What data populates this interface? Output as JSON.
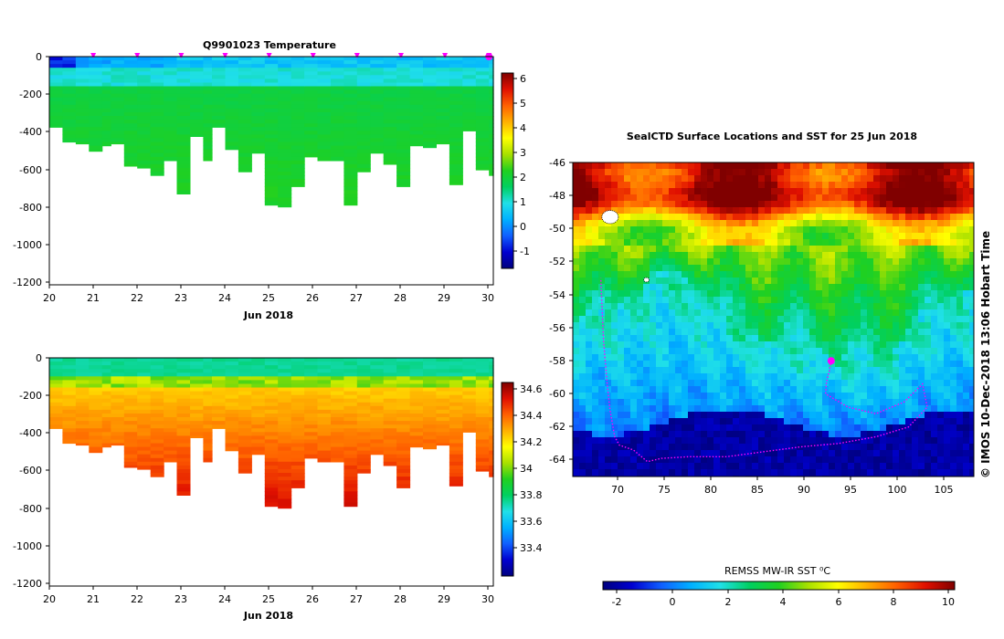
{
  "colors": {
    "cmap": [
      "#00007f",
      "#0000d0",
      "#1060ff",
      "#00b0ff",
      "#20e0e8",
      "#00d060",
      "#20d020",
      "#a8e000",
      "#ffff00",
      "#ffb000",
      "#ff6000",
      "#e01000",
      "#800000"
    ],
    "track": "#ff00ff",
    "land": "#ffffff"
  },
  "chart_data": [
    {
      "id": "temperature-section",
      "type": "heatmap",
      "title": "Q9901023  Temperature",
      "xlabel": "Jun 2018",
      "xlim": [
        20,
        30.1
      ],
      "xticks": [
        "20",
        "21",
        "22",
        "23",
        "24",
        "25",
        "26",
        "27",
        "28",
        "29",
        "30"
      ],
      "ylim": [
        -1230,
        0
      ],
      "yticks": [
        "0",
        "-200",
        "-400",
        "-600",
        "-800",
        "-1000",
        "-1200"
      ],
      "colorbar": {
        "range": [
          -1.7,
          6.2
        ],
        "ticks": [
          "6",
          "5",
          "4",
          "3",
          "2",
          "1",
          "0",
          "-1"
        ]
      },
      "profile_times": [
        20.0,
        20.3,
        20.6,
        20.9,
        21.2,
        21.4,
        21.7,
        22.0,
        22.3,
        22.6,
        22.9,
        23.2,
        23.5,
        23.7,
        24.0,
        24.3,
        24.6,
        24.9,
        25.2,
        25.5,
        25.8,
        26.1,
        26.4,
        26.7,
        27.0,
        27.3,
        27.6,
        27.9,
        28.2,
        28.5,
        28.8,
        29.1,
        29.4,
        29.7,
        30.0
      ],
      "profile_max_depth": [
        -380,
        -460,
        -470,
        -510,
        -480,
        -470,
        -590,
        -600,
        -640,
        -560,
        -740,
        -430,
        -560,
        -380,
        -500,
        -620,
        -520,
        -800,
        -810,
        -700,
        -540,
        -560,
        -560,
        -800,
        -620,
        -520,
        -580,
        -700,
        -480,
        -490,
        -470,
        -690,
        -400,
        -610,
        -640
      ],
      "surface_markers": [
        21,
        22,
        23,
        24,
        25,
        26,
        27,
        28,
        29,
        30
      ],
      "latest_marker": 30
    },
    {
      "id": "salinity-section",
      "type": "heatmap",
      "title": "",
      "xlabel": "Jun 2018",
      "xlim": [
        20,
        30.1
      ],
      "xticks": [
        "20",
        "21",
        "22",
        "23",
        "24",
        "25",
        "26",
        "27",
        "28",
        "29",
        "30"
      ],
      "ylim": [
        -1230,
        0
      ],
      "yticks": [
        "0",
        "-200",
        "-400",
        "-600",
        "-800",
        "-1000",
        "-1200"
      ],
      "colorbar": {
        "range": [
          33.25,
          34.68
        ],
        "ticks": [
          "34.6",
          "34.4",
          "34.2",
          "34",
          "33.8",
          "33.6",
          "33.4"
        ]
      },
      "profile_times": [
        20.0,
        20.3,
        20.6,
        20.9,
        21.2,
        21.4,
        21.7,
        22.0,
        22.3,
        22.6,
        22.9,
        23.2,
        23.5,
        23.7,
        24.0,
        24.3,
        24.6,
        24.9,
        25.2,
        25.5,
        25.8,
        26.1,
        26.4,
        26.7,
        27.0,
        27.3,
        27.6,
        27.9,
        28.2,
        28.5,
        28.8,
        29.1,
        29.4,
        29.7,
        30.0
      ],
      "profile_max_depth": [
        -380,
        -460,
        -470,
        -510,
        -480,
        -470,
        -590,
        -600,
        -640,
        -560,
        -740,
        -430,
        -560,
        -380,
        -500,
        -620,
        -520,
        -800,
        -810,
        -700,
        -540,
        -560,
        -560,
        -800,
        -620,
        -520,
        -580,
        -700,
        -480,
        -490,
        -470,
        -690,
        -400,
        -610,
        -640
      ]
    },
    {
      "id": "sst-map",
      "type": "heatmap",
      "title": "SealCTD Surface Locations and SST for 25 Jun 2018",
      "xlim": [
        65.5,
        108.5
      ],
      "ylim": [
        -65,
        -46
      ],
      "xticks": [
        "70",
        "75",
        "80",
        "85",
        "90",
        "95",
        "100",
        "105"
      ],
      "yticks": [
        "-46",
        "-48",
        "-50",
        "-52",
        "-54",
        "-56",
        "-58",
        "-60",
        "-62",
        "-64"
      ],
      "side_label": "© IMOS 10-Dec-2018 13:06 Hobart Time",
      "track": [
        [
          93.2,
          -58.0
        ],
        [
          93.0,
          -58.6
        ],
        [
          92.7,
          -59.3
        ],
        [
          92.6,
          -60.0
        ],
        [
          95,
          -60.8
        ],
        [
          98,
          -61.2
        ],
        [
          101,
          -60.5
        ],
        [
          103,
          -59.4
        ],
        [
          103.5,
          -60.8
        ],
        [
          101.5,
          -62.0
        ],
        [
          98,
          -62.6
        ],
        [
          94,
          -63.0
        ],
        [
          90,
          -63.2
        ],
        [
          86,
          -63.5
        ],
        [
          82,
          -63.8
        ],
        [
          78,
          -63.8
        ],
        [
          75,
          -63.9
        ],
        [
          73.5,
          -64.1
        ],
        [
          72,
          -63.4
        ],
        [
          70.5,
          -63.1
        ],
        [
          70,
          -62.6
        ],
        [
          69.5,
          -61.0
        ],
        [
          69.2,
          -59.5
        ],
        [
          68.8,
          -56.8
        ],
        [
          68.5,
          -53.0
        ]
      ],
      "current_position": [
        93.2,
        -58.0
      ],
      "islands": [
        [
          69.5,
          -49.3
        ],
        [
          73.4,
          -53.1
        ]
      ]
    },
    {
      "id": "sst-colorbar",
      "type": "colorbar",
      "label": "REMSS MW-IR SST ⁰C",
      "range": [
        -2.5,
        10.3
      ],
      "ticks": [
        "-2",
        "0",
        "2",
        "4",
        "6",
        "8",
        "10"
      ]
    }
  ]
}
